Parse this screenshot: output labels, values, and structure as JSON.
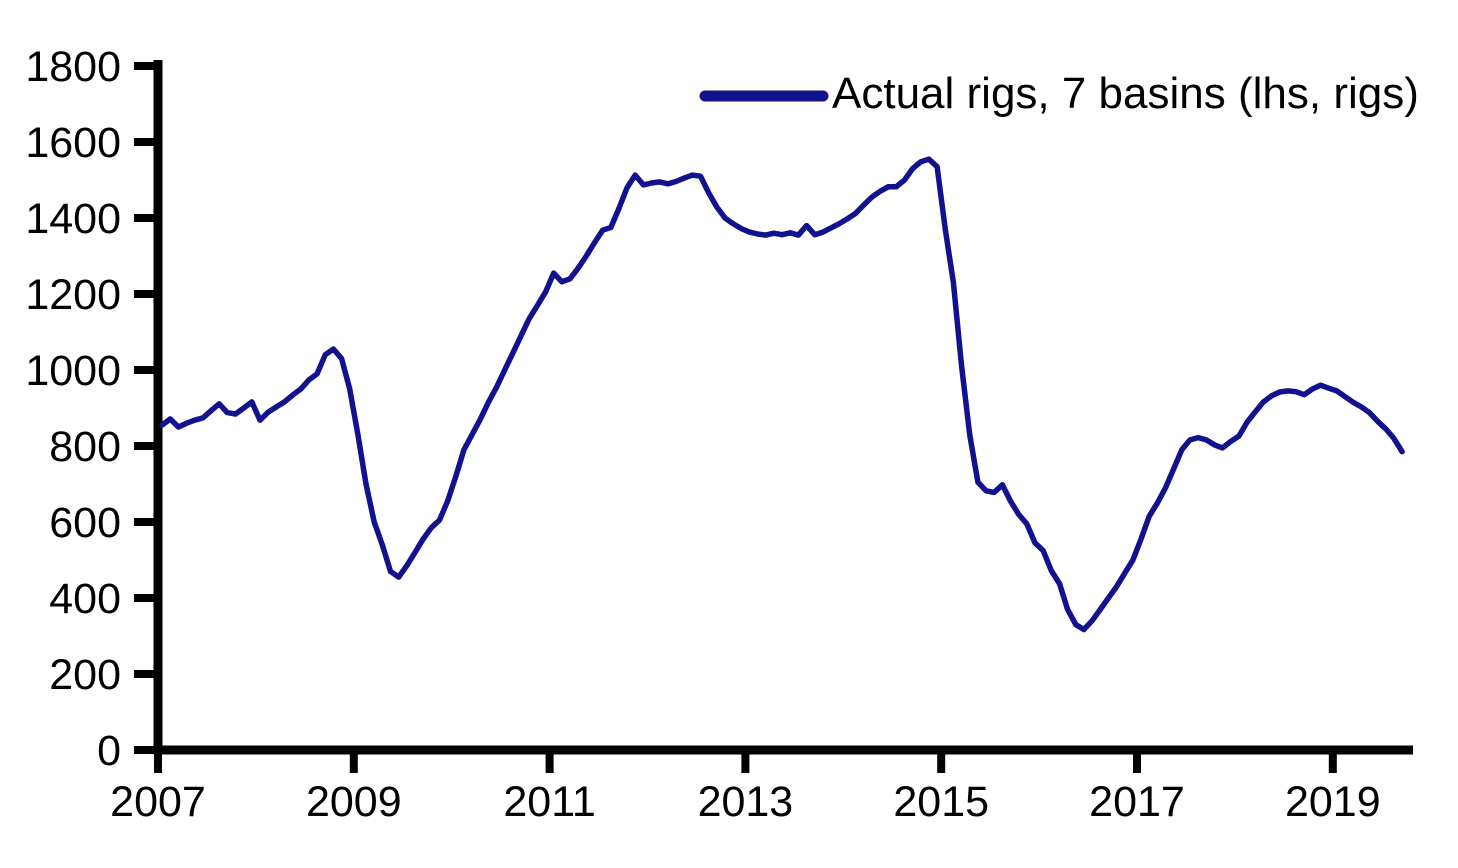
{
  "chart_data": {
    "type": "line",
    "title": "",
    "xlabel": "",
    "ylabel": "",
    "grid": false,
    "legend_position": "top-right",
    "legend_label": "Actual rigs, 7 basins (lhs, rigs)",
    "x_ticks": [
      2007,
      2009,
      2011,
      2013,
      2015,
      2017,
      2019
    ],
    "y_ticks": [
      0,
      200,
      400,
      600,
      800,
      1000,
      1200,
      1400,
      1600,
      1800
    ],
    "ylim": [
      0,
      1800
    ],
    "xlim": [
      2007,
      2019.85
    ],
    "axis_color": "#000000",
    "series": [
      {
        "name": "Actual rigs, 7 basins (lhs, rigs)",
        "color": "#12128f",
        "x_start": 2007.0417,
        "x_step": 0.08333,
        "values": [
          855,
          871,
          850,
          860,
          868,
          874,
          893,
          911,
          888,
          884,
          900,
          916,
          868,
          889,
          903,
          916,
          934,
          950,
          974,
          990,
          1040,
          1055,
          1030,
          950,
          830,
          700,
          600,
          540,
          470,
          455,
          485,
          520,
          555,
          585,
          605,
          655,
          720,
          790,
          830,
          870,
          915,
          955,
          1000,
          1045,
          1090,
          1135,
          1170,
          1205,
          1255,
          1232,
          1240,
          1268,
          1300,
          1335,
          1368,
          1375,
          1425,
          1480,
          1513,
          1487,
          1492,
          1495,
          1490,
          1496,
          1505,
          1513,
          1510,
          1466,
          1429,
          1400,
          1385,
          1372,
          1363,
          1358,
          1355,
          1360,
          1356,
          1361,
          1355,
          1380,
          1356,
          1363,
          1374,
          1385,
          1398,
          1412,
          1434,
          1455,
          1470,
          1482,
          1482,
          1500,
          1530,
          1548,
          1555,
          1535,
          1370,
          1230,
          1010,
          830,
          705,
          682,
          678,
          698,
          655,
          620,
          595,
          545,
          525,
          472,
          438,
          370,
          330,
          317,
          340,
          370,
          400,
          430,
          465,
          500,
          555,
          615,
          650,
          690,
          740,
          790,
          816,
          822,
          816,
          803,
          795,
          812,
          826,
          863,
          890,
          916,
          932,
          942,
          945,
          943,
          935,
          950,
          960,
          952,
          945,
          930,
          915,
          903,
          888,
          865,
          845,
          820,
          785
        ]
      }
    ]
  }
}
